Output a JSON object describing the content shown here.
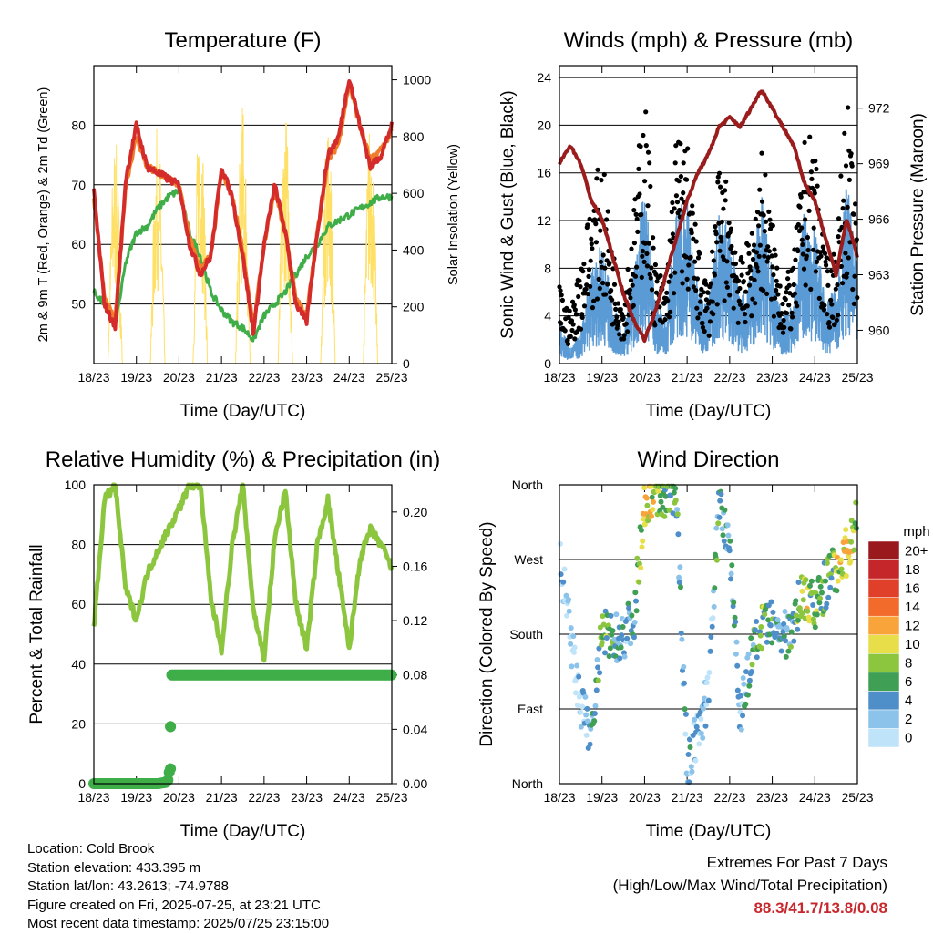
{
  "panels": {
    "temperature": {
      "title": "Temperature (F)",
      "ylabel_left": "2m & 9m T (Red, Orange) & 2m Td (Green)",
      "ylabel_right": "Solar Insolation (Yellow)",
      "xlabel": "Time (Day/UTC)"
    },
    "winds": {
      "title": "Winds (mph) & Pressure (mb)",
      "ylabel_left": "Sonic Wind & Gust (Blue, Black)",
      "ylabel_right": "Station Pressure (Maroon)",
      "xlabel": "Time (Day/UTC)"
    },
    "humidity": {
      "title": "Relative Humidity (%) & Precipitation (in)",
      "ylabel_left": "Percent & Total Rainfall",
      "xlabel": "Time (Day/UTC)"
    },
    "direction": {
      "title": "Wind Direction",
      "ylabel_left": "Direction (Colored By Speed)",
      "xlabel": "Time (Day/UTC)",
      "legend_title": "mph"
    }
  },
  "info": {
    "location": "Location: Cold Brook",
    "elevation": "Station elevation: 433.395 m",
    "latlon": "Station lat/lon: 43.2613; -74.9788",
    "created": "Figure created on Fri, 2025-07-25, at 23:21 UTC",
    "recent": "Most recent data timestamp: 2025/07/25 23:15:00"
  },
  "extremes": {
    "title": "Extremes For Past 7 Days",
    "subtitle": "(High/Low/Max Wind/Total Precipitation)",
    "values": "88.3/41.7/13.8/0.08"
  },
  "colors": {
    "temp_2m": "#d42b2b",
    "temp_9m": "#f07d2a",
    "dewpoint": "#3fae49",
    "solar": "#ffe066",
    "wind": "#5b9bd5",
    "gust": "#000000",
    "pressure": "#9b1c1c",
    "rh": "#8cc63f",
    "precip": "#3fae49"
  },
  "chart_data": [
    {
      "type": "line",
      "title": "Temperature (F)",
      "xlabel": "Time (Day/UTC)",
      "ylabel": "2m & 9m T (Red, Orange) & 2m Td (Green)",
      "ylabel_right": "Solar Insolation (Yellow)",
      "x_ticks": [
        "18/23",
        "19/23",
        "20/23",
        "21/23",
        "22/23",
        "23/23",
        "24/23",
        "25/23"
      ],
      "ylim": [
        40,
        90
      ],
      "y_ticks": [
        50,
        60,
        70,
        80
      ],
      "ylim_right": [
        0,
        1050
      ],
      "y_ticks_right": [
        0,
        200,
        400,
        600,
        800,
        1000
      ],
      "series": [
        {
          "name": "2m T",
          "color": "#d42b2b",
          "x": [
            0,
            0.25,
            0.5,
            0.75,
            1,
            1.25,
            1.5,
            1.75,
            2,
            2.25,
            2.5,
            2.75,
            3,
            3.25,
            3.5,
            3.75,
            4,
            4.25,
            4.5,
            4.75,
            5,
            5.25,
            5.5,
            5.75,
            6,
            6.25,
            6.5,
            6.75,
            7
          ],
          "values": [
            69,
            50,
            46,
            71,
            80,
            73,
            72,
            71,
            70,
            60,
            55,
            58,
            73,
            68,
            58,
            45,
            60,
            70,
            62,
            50,
            47,
            62,
            75,
            78,
            88,
            80,
            73,
            75,
            80
          ]
        },
        {
          "name": "9m T",
          "color": "#f07d2a",
          "x": [
            0,
            0.25,
            0.5,
            0.75,
            1,
            1.25,
            1.5,
            1.75,
            2,
            2.25,
            2.5,
            2.75,
            3,
            3.25,
            3.5,
            3.75,
            4,
            4.25,
            4.5,
            4.75,
            5,
            5.25,
            5.5,
            5.75,
            6,
            6.25,
            6.5,
            6.75,
            7
          ],
          "values": [
            68,
            51,
            47,
            70,
            78,
            73,
            72,
            71,
            70,
            61,
            56,
            58,
            72,
            68,
            59,
            46,
            60,
            69,
            62,
            51,
            48,
            62,
            74,
            77,
            87,
            80,
            74,
            76,
            79
          ]
        },
        {
          "name": "2m Td",
          "color": "#3fae49",
          "x": [
            0,
            0.25,
            0.5,
            0.75,
            1,
            1.25,
            1.5,
            1.75,
            2,
            2.25,
            2.5,
            2.75,
            3,
            3.25,
            3.5,
            3.75,
            4,
            4.25,
            4.5,
            4.75,
            5,
            5.25,
            5.5,
            5.75,
            6,
            6.25,
            6.5,
            6.75,
            7
          ],
          "values": [
            52,
            50,
            46,
            57,
            62,
            63,
            66,
            68,
            69,
            62,
            58,
            52,
            49,
            47,
            46,
            44,
            48,
            50,
            52,
            55,
            58,
            60,
            63,
            64,
            65,
            66,
            67,
            68,
            68
          ]
        },
        {
          "name": "Solar",
          "axis": "right",
          "color": "#ffe066",
          "x": [
            0,
            0.33,
            0.5,
            0.67,
            1,
            1.33,
            1.5,
            1.67,
            2,
            2.33,
            2.5,
            2.67,
            3,
            3.33,
            3.5,
            3.67,
            4,
            4.33,
            4.5,
            4.67,
            5,
            5.33,
            5.5,
            5.67,
            6,
            6.33,
            6.5,
            6.67,
            7
          ],
          "values": [
            0,
            0,
            800,
            0,
            0,
            0,
            850,
            0,
            0,
            0,
            950,
            0,
            0,
            0,
            920,
            0,
            0,
            0,
            900,
            0,
            0,
            0,
            880,
            0,
            0,
            0,
            870,
            0,
            0
          ]
        }
      ]
    },
    {
      "type": "scatter",
      "title": "Winds (mph) & Pressure (mb)",
      "xlabel": "Time (Day/UTC)",
      "ylabel": "Sonic Wind & Gust (Blue, Black)",
      "ylabel_right": "Station Pressure (Maroon)",
      "x_ticks": [
        "18/23",
        "19/23",
        "20/23",
        "21/23",
        "22/23",
        "23/23",
        "24/23",
        "25/23"
      ],
      "ylim": [
        0,
        25
      ],
      "y_ticks": [
        0,
        4,
        8,
        12,
        16,
        20,
        24
      ],
      "ylim_right": [
        958.2,
        974.3
      ],
      "y_ticks_right": [
        960,
        963,
        966,
        969,
        972
      ],
      "series": [
        {
          "name": "Sonic Wind",
          "color": "#5b9bd5",
          "x": [
            0,
            0.25,
            0.5,
            0.75,
            1,
            1.25,
            1.5,
            1.75,
            2,
            2.25,
            2.5,
            2.75,
            3,
            3.25,
            3.5,
            3.75,
            4,
            4.25,
            4.5,
            4.75,
            5,
            5.25,
            5.5,
            5.75,
            6,
            6.25,
            6.5,
            6.75,
            7
          ],
          "values": [
            3,
            1,
            2,
            6,
            8,
            4,
            2,
            6,
            12,
            4,
            3,
            10,
            11,
            5,
            4,
            10,
            9,
            4,
            6,
            11,
            6,
            3,
            4,
            10,
            9,
            4,
            5,
            12,
            6
          ]
        },
        {
          "name": "Gust",
          "color": "#000000",
          "x": [
            0,
            0.25,
            0.5,
            0.75,
            1,
            1.25,
            1.5,
            1.75,
            2,
            2.25,
            2.5,
            2.75,
            3,
            3.25,
            3.5,
            3.75,
            4,
            4.25,
            4.5,
            4.75,
            5,
            5.25,
            5.5,
            5.75,
            6,
            6.25,
            6.5,
            6.75,
            7
          ],
          "values": [
            6,
            4,
            8,
            13,
            16,
            9,
            5,
            12,
            22,
            8,
            6,
            18,
            17,
            9,
            6,
            15,
            14,
            8,
            10,
            17,
            11,
            6,
            8,
            17,
            18,
            8,
            9,
            21,
            10
          ]
        },
        {
          "name": "Station Pressure",
          "axis": "right",
          "color": "#9b1c1c",
          "x": [
            0,
            0.25,
            0.5,
            0.75,
            1,
            1.25,
            1.5,
            1.75,
            2,
            2.25,
            2.5,
            2.75,
            3,
            3.25,
            3.5,
            3.75,
            4,
            4.25,
            4.5,
            4.75,
            5,
            5.25,
            5.5,
            5.75,
            6,
            6.25,
            6.5,
            6.75,
            7
          ],
          "values": [
            969,
            970,
            969,
            967,
            966,
            964,
            962,
            960.5,
            959.5,
            961,
            963,
            965,
            967,
            968.5,
            969.5,
            971,
            971.5,
            971,
            972,
            973,
            972,
            971,
            970,
            968,
            967,
            965,
            963,
            966,
            964
          ]
        }
      ]
    },
    {
      "type": "line",
      "title": "Relative Humidity (%) & Precipitation (in)",
      "xlabel": "Time (Day/UTC)",
      "ylabel": "Percent & Total Rainfall",
      "x_ticks": [
        "18/23",
        "19/23",
        "20/23",
        "21/23",
        "22/23",
        "23/23",
        "24/23",
        "25/23"
      ],
      "ylim": [
        0,
        100
      ],
      "y_ticks": [
        0,
        20,
        40,
        60,
        80,
        100
      ],
      "ylim_right": [
        0,
        0.22
      ],
      "y_ticks_right": [
        "0.00",
        "0.04",
        "0.08",
        "0.12",
        "0.16",
        "0.20"
      ],
      "series": [
        {
          "name": "RH",
          "color": "#8cc63f",
          "x": [
            0,
            0.25,
            0.5,
            0.75,
            1,
            1.25,
            1.5,
            1.75,
            2,
            2.25,
            2.5,
            2.75,
            3,
            3.25,
            3.5,
            3.75,
            4,
            4.25,
            4.5,
            4.75,
            5,
            5.25,
            5.5,
            5.75,
            6,
            6.25,
            6.5,
            6.75,
            7
          ],
          "values": [
            52,
            95,
            100,
            65,
            55,
            70,
            78,
            85,
            92,
            100,
            100,
            62,
            45,
            80,
            100,
            58,
            42,
            82,
            98,
            60,
            45,
            80,
            95,
            70,
            45,
            75,
            85,
            80,
            72
          ]
        },
        {
          "name": "Precipitation",
          "axis": "right",
          "color": "#3fae49",
          "x": [
            0,
            0.5,
            1,
            1.5,
            1.7,
            1.75,
            1.78,
            1.8,
            1.82,
            2,
            3,
            4,
            5,
            6,
            7
          ],
          "values": [
            0,
            0,
            0,
            0,
            0.001,
            0.003,
            0.011,
            0.042,
            0.08,
            0.08,
            0.08,
            0.08,
            0.08,
            0.08,
            0.08
          ]
        }
      ]
    },
    {
      "type": "scatter",
      "title": "Wind Direction",
      "xlabel": "Time (Day/UTC)",
      "ylabel": "Direction (Colored By Speed)",
      "x_ticks": [
        "18/23",
        "19/23",
        "20/23",
        "21/23",
        "22/23",
        "23/23",
        "24/23",
        "25/23"
      ],
      "y_ticks": [
        "North",
        "East",
        "South",
        "West",
        "North"
      ],
      "ylim": [
        0,
        360
      ],
      "legend_title": "mph",
      "legend_labels": [
        "0",
        "2",
        "4",
        "6",
        "8",
        "10",
        "12",
        "14",
        "16",
        "18",
        "20+"
      ],
      "legend_colors": [
        "#bfe3f8",
        "#8cc3ea",
        "#4f8fc9",
        "#3f9f54",
        "#8cc63f",
        "#e8de4a",
        "#f9a43a",
        "#f26b2a",
        "#e0402a",
        "#c5262a",
        "#99191c"
      ],
      "series": [
        {
          "name": "Direction",
          "x": [
            0,
            0.25,
            0.5,
            0.75,
            1,
            1.25,
            1.5,
            1.75,
            2,
            2.25,
            2.5,
            2.75,
            3,
            3.25,
            3.5,
            3.75,
            4,
            4.25,
            4.5,
            4.75,
            5,
            5.25,
            5.5,
            5.75,
            6,
            6.25,
            6.5,
            6.75,
            7
          ],
          "values": [
            275,
            180,
            90,
            60,
            180,
            175,
            180,
            200,
            340,
            355,
            350,
            345,
            20,
            60,
            110,
            340,
            290,
            85,
            150,
            185,
            190,
            175,
            200,
            230,
            210,
            240,
            260,
            280,
            315
          ],
          "speed": [
            2,
            1,
            2,
            4,
            8,
            6,
            4,
            5,
            12,
            10,
            8,
            6,
            4,
            3,
            2,
            6,
            5,
            3,
            6,
            8,
            6,
            4,
            6,
            10,
            8,
            6,
            9,
            12,
            10
          ]
        }
      ]
    }
  ]
}
